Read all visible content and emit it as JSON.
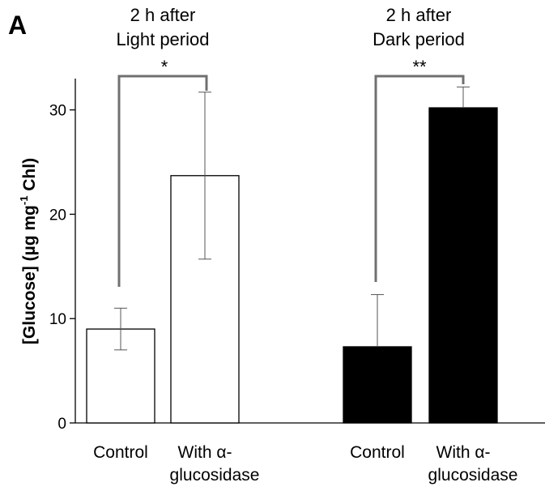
{
  "panel_label": "A",
  "groups": [
    {
      "title_line1": "2 h after",
      "title_line2": "Light period",
      "significance": "*"
    },
    {
      "title_line1": "2 h after",
      "title_line2": "Dark period",
      "significance": "**"
    }
  ],
  "chart_data": {
    "type": "bar",
    "ylabel_main": "[Glucose] (µg mg",
    "ylabel_sup": "-1",
    "ylabel_end": " Chl)",
    "ylim": [
      0,
      33
    ],
    "yticks": [
      0,
      10,
      20,
      30
    ],
    "colors": {
      "light": "#ffffff",
      "dark": "#000000",
      "bracket": "#707070"
    },
    "bars": [
      {
        "group": 0,
        "label_line1": "Control",
        "label_line2": "",
        "value": 9.0,
        "error": 2.0,
        "fill": "#ffffff"
      },
      {
        "group": 0,
        "label_line1": "With α-",
        "label_line2": "glucosidase",
        "value": 23.7,
        "error": 8.0,
        "fill": "#ffffff"
      },
      {
        "group": 1,
        "label_line1": "Control",
        "label_line2": "",
        "value": 7.3,
        "error": 5.0,
        "fill": "#000000"
      },
      {
        "group": 1,
        "label_line1": "With α-",
        "label_line2": "glucosidase",
        "value": 30.2,
        "error": 2.0,
        "fill": "#000000"
      }
    ]
  }
}
